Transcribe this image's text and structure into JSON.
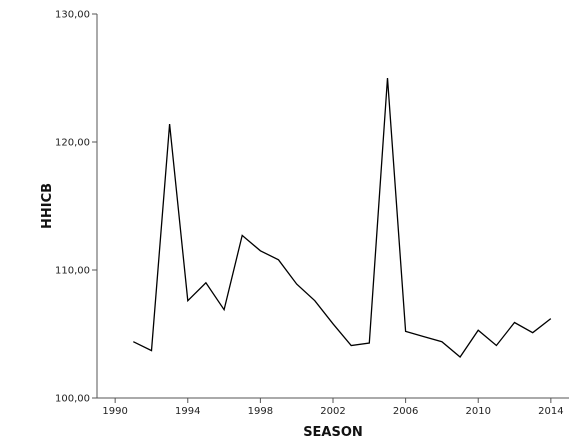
{
  "chart_data": {
    "type": "line",
    "xlabel": "SEASON",
    "ylabel": "HHICB",
    "xlim": [
      1989,
      2015
    ],
    "ylim": [
      100,
      130
    ],
    "x_ticks": [
      1990,
      1994,
      1998,
      2002,
      2006,
      2010,
      2014
    ],
    "x_tick_labels": [
      "1990",
      "1994",
      "1998",
      "2002",
      "2006",
      "2010",
      "2014"
    ],
    "y_ticks": [
      100,
      110,
      120,
      130
    ],
    "y_tick_labels": [
      "100,00",
      "110,00",
      "120,00",
      "130,00"
    ],
    "grid": false,
    "legend": "none",
    "line_color": "#000000",
    "series": [
      {
        "x": [
          1991,
          1992,
          1993,
          1994,
          1995,
          1996,
          1997,
          1998,
          1999,
          2000,
          2001,
          2002,
          2003,
          2004,
          2005,
          2006,
          2007,
          2008,
          2009,
          2010,
          2011,
          2012,
          2013,
          2014
        ],
        "values": [
          104.4,
          103.7,
          121.4,
          107.6,
          109.0,
          106.9,
          112.7,
          111.5,
          110.8,
          108.9,
          107.6,
          105.8,
          104.1,
          104.3,
          125.0,
          105.2,
          104.8,
          104.4,
          103.2,
          105.3,
          104.1,
          105.9,
          105.1,
          106.2
        ]
      }
    ]
  }
}
